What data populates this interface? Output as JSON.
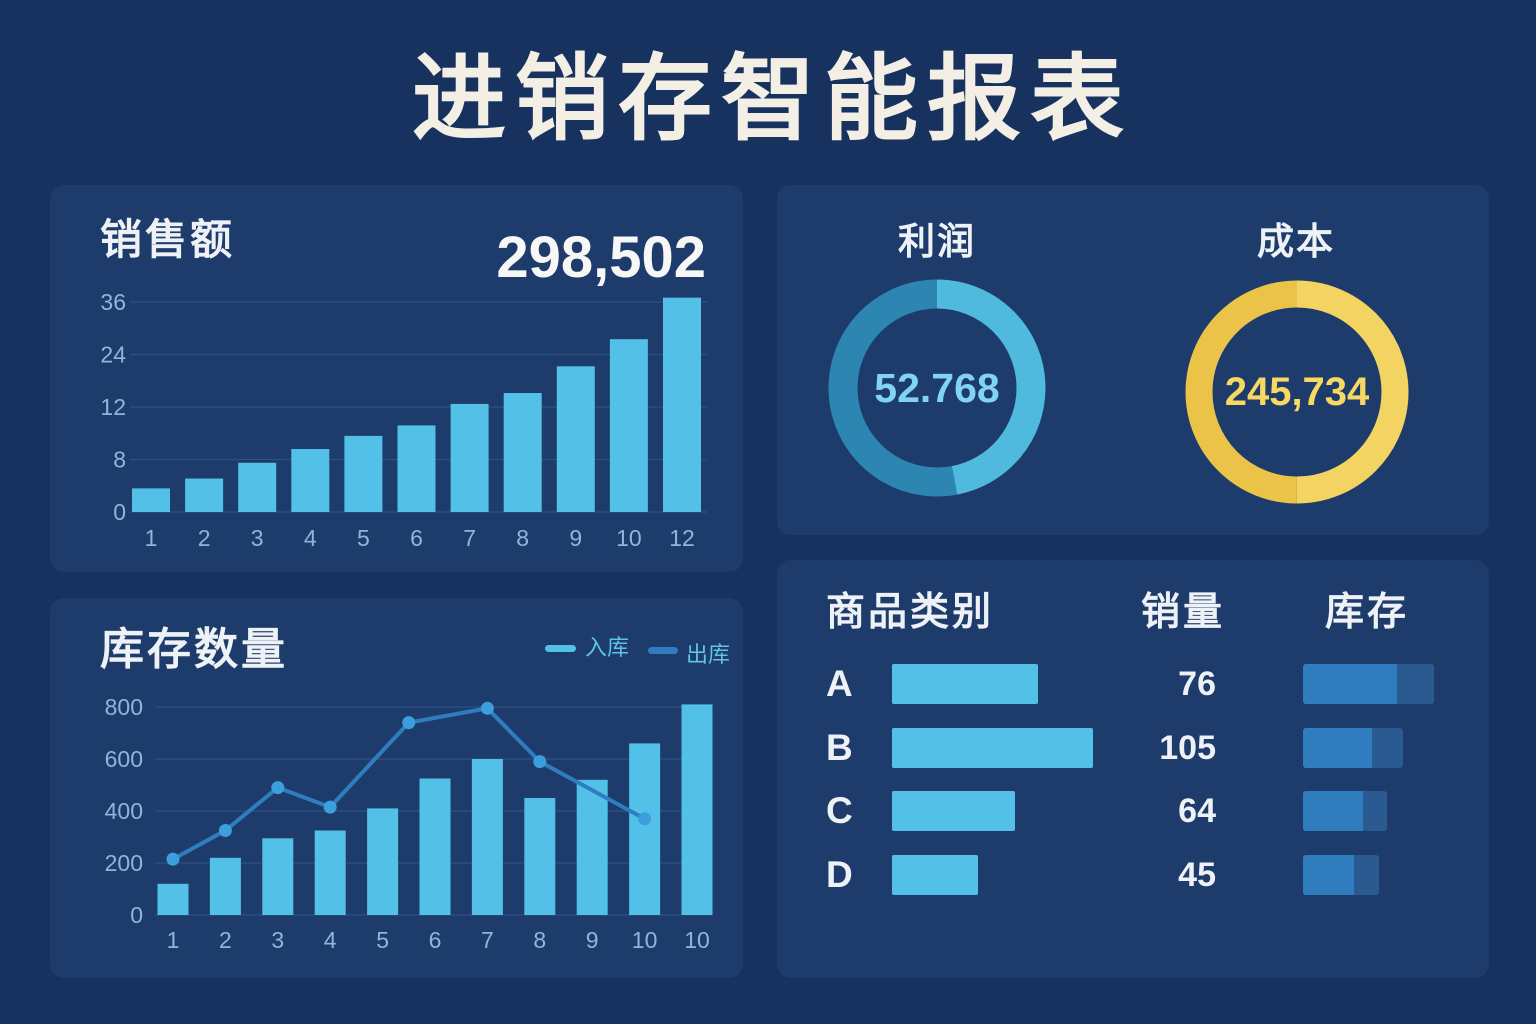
{
  "title": "进销存智能报表",
  "theme": {
    "background": "#17325f",
    "panel": "#1d3c6b",
    "title_text": "#f4efe5",
    "text": "#eef1f5",
    "grid": "#2e5182",
    "tick_text": "#8cb6de",
    "legend_text": "#5ec3e8",
    "bar": "#52c0e7",
    "marker": "#3c9fdb",
    "profit_text": "#80d4f2",
    "cost_text": "#f6d862",
    "stock_fill": "#2f7cbf",
    "stock_track": "#2a5a90"
  },
  "chart_data": [
    {
      "type": "bar",
      "title": "销售额",
      "total": "298,502",
      "categories": [
        "1",
        "2",
        "3",
        "4",
        "5",
        "6",
        "7",
        "8",
        "9",
        "10",
        "12"
      ],
      "values": [
        3.6,
        5.1,
        7.5,
        8.8,
        9.8,
        10.6,
        12.7,
        15.2,
        21.3,
        27.5,
        37
      ],
      "yticks": [
        0,
        8,
        12,
        24,
        36
      ],
      "y_scale": "piecewise",
      "grid": true
    },
    {
      "type": "pie",
      "title": "利润",
      "center_label": "52.768",
      "segments": [
        {
          "fraction": 0.47,
          "color": "#4fbadd"
        },
        {
          "fraction": 0.53,
          "color": "#2d86b2"
        }
      ]
    },
    {
      "type": "pie",
      "title": "成本",
      "center_label": "245,734",
      "segments": [
        {
          "fraction": 0.5,
          "color": "#f3d463"
        },
        {
          "fraction": 0.5,
          "color": "#eac348"
        }
      ]
    },
    {
      "type": "bar",
      "title": "库存数量",
      "categories": [
        "1",
        "2",
        "3",
        "4",
        "5",
        "6",
        "7",
        "8",
        "9",
        "10",
        "10"
      ],
      "series": [
        {
          "name": "入库",
          "type": "bar",
          "color": "#52c0e7",
          "values": [
            120,
            220,
            295,
            325,
            410,
            525,
            600,
            450,
            520,
            660,
            810
          ]
        },
        {
          "name": "出库",
          "type": "line",
          "color": "#2f7dbf",
          "x": [
            1,
            2,
            3,
            4,
            5.5,
            7,
            8,
            10
          ],
          "values": [
            215,
            325,
            490,
            415,
            740,
            795,
            590,
            370
          ]
        }
      ],
      "ylim": [
        0,
        800
      ],
      "yticks": [
        0,
        200,
        400,
        600,
        800
      ],
      "legend": "top-right",
      "grid": true
    },
    {
      "type": "table",
      "columns": [
        "商品类别",
        "销量",
        "库存"
      ],
      "rows": [
        {
          "category": "A",
          "sales": 76,
          "stock_level": 0.72,
          "stock_capacity": 1.0
        },
        {
          "category": "B",
          "sales": 105,
          "stock_level": 0.53,
          "stock_capacity": 0.76
        },
        {
          "category": "C",
          "sales": 64,
          "stock_level": 0.46,
          "stock_capacity": 0.64
        },
        {
          "category": "D",
          "sales": 45,
          "stock_level": 0.39,
          "stock_capacity": 0.58
        }
      ]
    }
  ]
}
